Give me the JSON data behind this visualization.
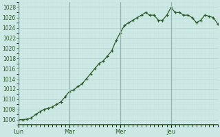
{
  "background_color": "#cce8e4",
  "plot_bg_color": "#cce8e4",
  "line_color": "#2d5a2d",
  "marker_color": "#2d5a2d",
  "y_min": 1005,
  "y_max": 1029,
  "y_ticks": [
    1006,
    1008,
    1010,
    1012,
    1014,
    1016,
    1018,
    1020,
    1022,
    1024,
    1026,
    1028
  ],
  "day_labels": [
    "Lun",
    "Mar",
    "Mer",
    "Jeu"
  ],
  "day_positions": [
    0,
    12,
    24,
    36
  ],
  "x_values": [
    0,
    1,
    2,
    3,
    4,
    5,
    6,
    7,
    8,
    9,
    10,
    11,
    12,
    13,
    14,
    15,
    16,
    17,
    18,
    19,
    20,
    21,
    22,
    23,
    24,
    25,
    26,
    27,
    28,
    29,
    30,
    31,
    32,
    33,
    34,
    35,
    36,
    37,
    38,
    39,
    40,
    41,
    42,
    43,
    44,
    45,
    46,
    47
  ],
  "y_values": [
    1006.0,
    1006.0,
    1006.1,
    1006.3,
    1007.0,
    1007.5,
    1008.0,
    1008.2,
    1008.5,
    1009.0,
    1009.5,
    1010.5,
    1011.5,
    1011.8,
    1012.5,
    1013.0,
    1014.0,
    1015.0,
    1016.0,
    1017.0,
    1017.5,
    1018.5,
    1019.5,
    1021.5,
    1023.0,
    1024.5,
    1025.0,
    1025.5,
    1026.0,
    1026.5,
    1027.0,
    1026.5,
    1026.5,
    1025.5,
    1025.5,
    1026.5,
    1028.0,
    1027.0,
    1027.0,
    1026.5,
    1026.5,
    1026.0,
    1025.0,
    1025.5,
    1026.5,
    1026.3,
    1026.0,
    1024.8
  ],
  "xlim_max": 47,
  "major_grid_color": "#b8d8d0",
  "minor_grid_color": "#c8e4de",
  "vline_color": "#8ab8b0",
  "axis_color": "#5a9a80",
  "tick_color": "#2d5a2d",
  "tick_fontsize": 5.5,
  "label_fontsize": 6.0
}
